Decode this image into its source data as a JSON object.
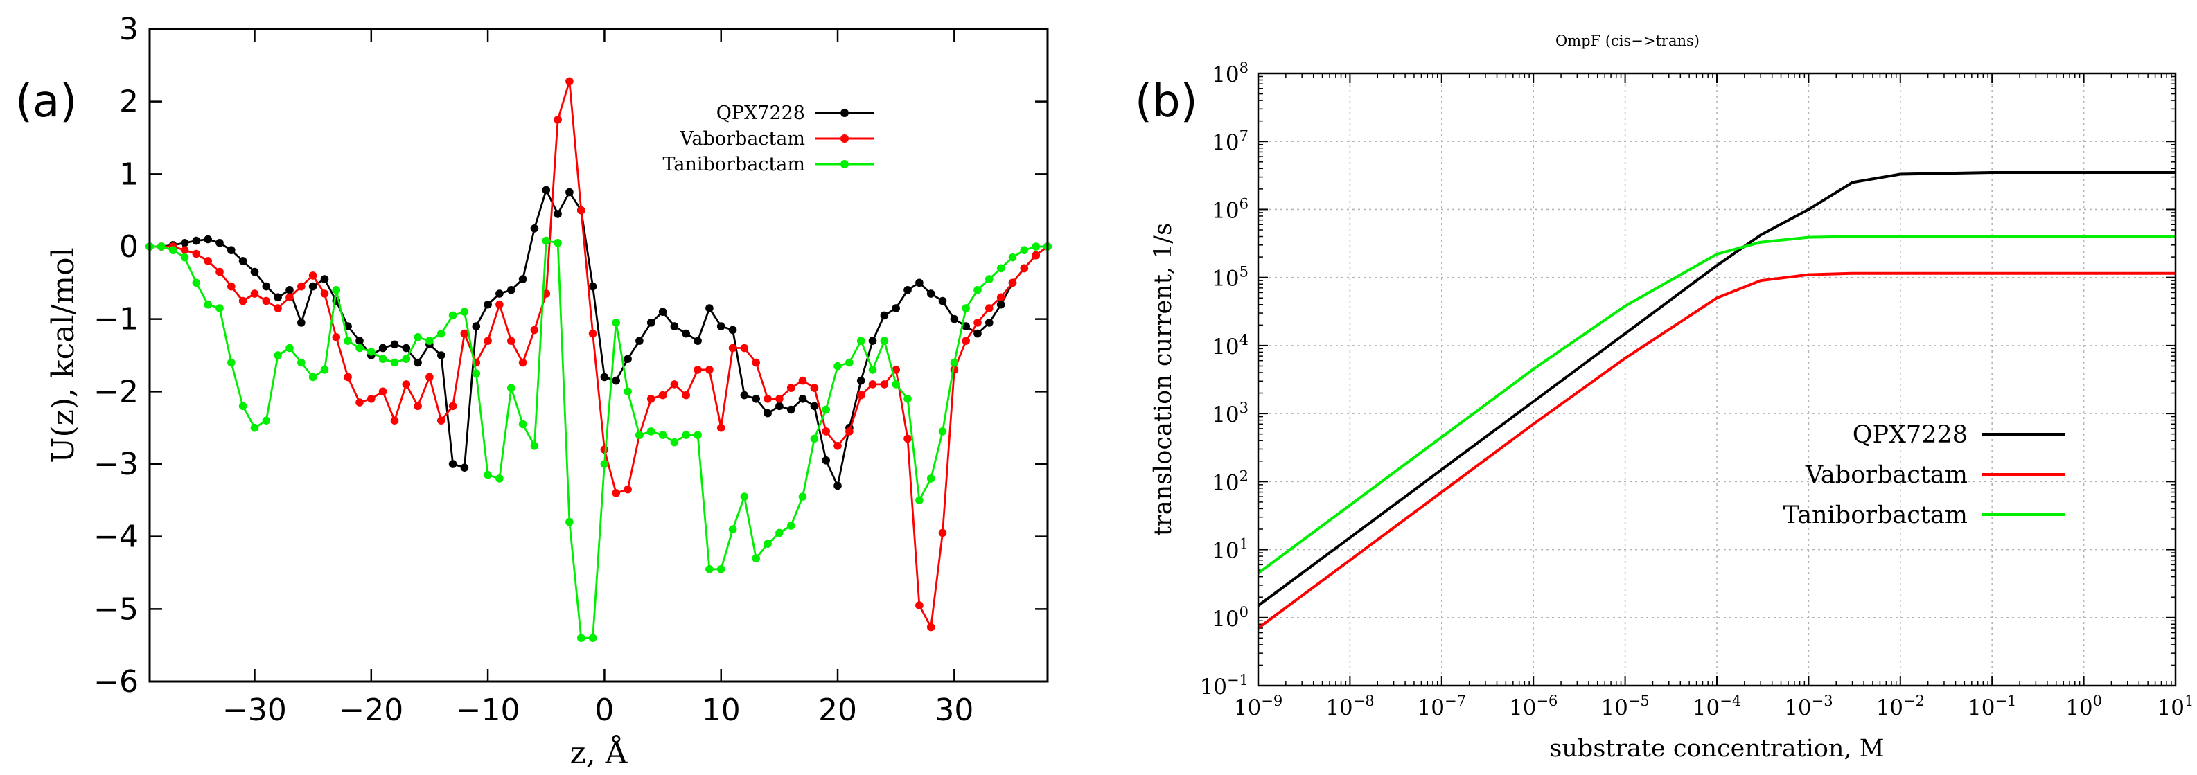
{
  "panels": {
    "a": {
      "label": "(a)"
    },
    "b": {
      "label": "(b)"
    }
  },
  "chart_data": [
    {
      "type": "line",
      "title": "",
      "xlabel": "z, Å",
      "ylabel": "U(z), kcal/mol",
      "xlim": [
        -39,
        38
      ],
      "ylim": [
        -6,
        3
      ],
      "xticks": [
        -30,
        -20,
        -10,
        0,
        10,
        20,
        30
      ],
      "xtick_labels": [
        "−30",
        "−20",
        "−10",
        "0",
        "10",
        "20",
        "30"
      ],
      "yticks": [
        -6,
        -5,
        -4,
        -3,
        -2,
        -1,
        0,
        1,
        2,
        3
      ],
      "ytick_labels": [
        "−6",
        "−5",
        "−4",
        "−3",
        "−2",
        "−1",
        "0",
        "1",
        "2",
        "3"
      ],
      "grid": false,
      "legend": "top-right",
      "markers": true,
      "series": [
        {
          "name": "QPX7228",
          "color": "#000000",
          "x": [
            -39,
            -38,
            -37,
            -36,
            -35,
            -34,
            -33,
            -32,
            -31,
            -30,
            -29,
            -28,
            -27,
            -26,
            -25,
            -24,
            -23,
            -22,
            -21,
            -20,
            -19,
            -18,
            -17,
            -16,
            -15,
            -14,
            -13,
            -12,
            -11,
            -10,
            -9,
            -8,
            -7,
            -6,
            -5,
            -4,
            -3,
            -2,
            -1,
            0,
            1,
            2,
            3,
            4,
            5,
            6,
            7,
            8,
            9,
            10,
            11,
            12,
            13,
            14,
            15,
            16,
            17,
            18,
            19,
            20,
            21,
            22,
            23,
            24,
            25,
            26,
            27,
            28,
            29,
            30,
            31,
            32,
            33,
            34,
            35,
            36,
            37,
            38
          ],
          "y": [
            0,
            0,
            0.02,
            0.05,
            0.08,
            0.1,
            0.05,
            -0.05,
            -0.2,
            -0.35,
            -0.55,
            -0.7,
            -0.6,
            -1.05,
            -0.55,
            -0.45,
            -0.75,
            -1.1,
            -1.3,
            -1.5,
            -1.4,
            -1.35,
            -1.4,
            -1.6,
            -1.35,
            -1.5,
            -3.0,
            -3.05,
            -1.1,
            -0.8,
            -0.65,
            -0.6,
            -0.45,
            0.25,
            0.78,
            0.45,
            0.75,
            0.5,
            -0.55,
            -1.8,
            -1.85,
            -1.55,
            -1.3,
            -1.05,
            -0.9,
            -1.1,
            -1.2,
            -1.3,
            -0.85,
            -1.1,
            -1.15,
            -2.05,
            -2.1,
            -2.3,
            -2.2,
            -2.25,
            -2.1,
            -2.2,
            -2.95,
            -3.3,
            -2.5,
            -1.85,
            -1.3,
            -0.95,
            -0.85,
            -0.6,
            -0.5,
            -0.65,
            -0.75,
            -1.0,
            -1.1,
            -1.2,
            -1.05,
            -0.8,
            -0.5,
            -0.3,
            -0.12,
            0
          ],
          "y_note": ""
        },
        {
          "name": "Vaborbactam",
          "color": "#ff0000",
          "x": [
            -39,
            -38,
            -37,
            -36,
            -35,
            -34,
            -33,
            -32,
            -31,
            -30,
            -29,
            -28,
            -27,
            -26,
            -25,
            -24,
            -23,
            -22,
            -21,
            -20,
            -19,
            -18,
            -17,
            -16,
            -15,
            -14,
            -13,
            -12,
            -11,
            -10,
            -9,
            -8,
            -7,
            -6,
            -5,
            -4,
            -3,
            -2,
            -1,
            0,
            1,
            2,
            3,
            4,
            5,
            6,
            7,
            8,
            9,
            10,
            11,
            12,
            13,
            14,
            15,
            16,
            17,
            18,
            19,
            20,
            21,
            22,
            23,
            24,
            25,
            26,
            27,
            28,
            29,
            30,
            31,
            32,
            33,
            34,
            35,
            36,
            37,
            38
          ],
          "y": [
            0,
            0,
            0,
            -0.05,
            -0.1,
            -0.2,
            -0.35,
            -0.55,
            -0.75,
            -0.65,
            -0.75,
            -0.85,
            -0.7,
            -0.55,
            -0.4,
            -0.65,
            -1.25,
            -1.8,
            -2.15,
            -2.1,
            -2.0,
            -2.4,
            -1.9,
            -2.2,
            -1.8,
            -2.4,
            -2.2,
            -1.2,
            -1.6,
            -1.3,
            -0.8,
            -1.3,
            -1.6,
            -1.15,
            -0.65,
            1.75,
            2.28,
            0.5,
            -1.2,
            -2.8,
            -3.4,
            -3.35,
            -2.6,
            -2.1,
            -2.05,
            -1.9,
            -2.05,
            -1.7,
            -1.7,
            -2.5,
            -1.4,
            -1.4,
            -1.6,
            -2.1,
            -2.1,
            -1.95,
            -1.85,
            -1.95,
            -2.55,
            -2.75,
            -2.55,
            -2.05,
            -1.9,
            -1.9,
            -1.7,
            -2.65,
            -4.95,
            -5.25,
            -3.95,
            -1.7,
            -1.3,
            -1.05,
            -0.85,
            -0.7,
            -0.5,
            -0.3,
            -0.12,
            0
          ],
          "y_note": ""
        },
        {
          "name": "Taniborbactam",
          "color": "#00ee00",
          "x": [
            -39,
            -38,
            -37,
            -36,
            -35,
            -34,
            -33,
            -32,
            -31,
            -30,
            -29,
            -28,
            -27,
            -26,
            -25,
            -24,
            -23,
            -22,
            -21,
            -20,
            -19,
            -18,
            -17,
            -16,
            -15,
            -14,
            -13,
            -12,
            -11,
            -10,
            -9,
            -8,
            -7,
            -6,
            -5,
            -4,
            -3,
            -2,
            -1,
            0,
            1,
            2,
            3,
            4,
            5,
            6,
            7,
            8,
            9,
            10,
            11,
            12,
            13,
            14,
            15,
            16,
            17,
            18,
            19,
            20,
            21,
            22,
            23,
            24,
            25,
            26,
            27,
            28,
            29,
            30,
            31,
            32,
            33,
            34,
            35,
            36,
            37,
            38
          ],
          "y": [
            0,
            0,
            -0.05,
            -0.15,
            -0.5,
            -0.8,
            -0.85,
            -1.6,
            -2.2,
            -2.5,
            -2.4,
            -1.5,
            -1.4,
            -1.6,
            -1.8,
            -1.7,
            -0.6,
            -1.3,
            -1.4,
            -1.45,
            -1.55,
            -1.6,
            -1.55,
            -1.25,
            -1.3,
            -1.2,
            -0.95,
            -0.9,
            -1.75,
            -3.15,
            -3.2,
            -1.95,
            -2.45,
            -2.75,
            0.08,
            0.05,
            -3.8,
            -5.4,
            -5.4,
            -3.0,
            -1.05,
            -2.0,
            -2.6,
            -2.55,
            -2.6,
            -2.7,
            -2.6,
            -2.6,
            -4.45,
            -4.45,
            -3.9,
            -3.45,
            -4.3,
            -4.1,
            -3.95,
            -3.85,
            -3.45,
            -2.65,
            -2.25,
            -1.65,
            -1.6,
            -1.3,
            -1.7,
            -1.3,
            -1.9,
            -2.1,
            -3.5,
            -3.2,
            -2.55,
            -1.6,
            -0.85,
            -0.6,
            -0.45,
            -0.3,
            -0.15,
            -0.05,
            0,
            0
          ],
          "y_note": ""
        }
      ]
    },
    {
      "type": "line",
      "title": "OmpF (cis−>trans)",
      "xlabel": "substrate concentration, M",
      "ylabel": "translocation current, 1/s",
      "xscale": "log",
      "yscale": "log",
      "xlim": [
        1e-09,
        10
      ],
      "ylim": [
        0.1,
        100000000.0
      ],
      "xtick_exponents": [
        -9,
        -8,
        -7,
        -6,
        -5,
        -4,
        -3,
        -2,
        -1,
        0,
        1
      ],
      "ytick_exponents": [
        -1,
        0,
        1,
        2,
        3,
        4,
        5,
        6,
        7,
        8
      ],
      "tick_base": "10",
      "grid": true,
      "legend": "bottom-right",
      "markers": false,
      "series": [
        {
          "name": "QPX7228",
          "color": "#000000",
          "x": [
            1e-09,
            1e-08,
            1e-07,
            1e-06,
            1e-05,
            0.0001,
            0.0003,
            0.001,
            0.003,
            0.01,
            0.1,
            1,
            10
          ],
          "y": [
            1.5,
            15,
            150,
            1500,
            15000,
            150000,
            420000,
            1000000,
            2500000,
            3300000,
            3500000,
            3500000,
            3500000
          ]
        },
        {
          "name": "Vaborbactam",
          "color": "#ff0000",
          "x": [
            1e-09,
            1e-08,
            1e-07,
            1e-06,
            1e-05,
            0.0001,
            0.0003,
            0.001,
            0.003,
            0.01,
            0.1,
            1,
            10
          ],
          "y": [
            0.7,
            7,
            70,
            700,
            6500,
            50000,
            90000,
            110000,
            115000,
            115000,
            115000,
            115000,
            115000
          ]
        },
        {
          "name": "Taniborbactam",
          "color": "#00ee00",
          "x": [
            1e-09,
            1e-08,
            1e-07,
            1e-06,
            1e-05,
            0.0001,
            0.0003,
            0.001,
            0.003,
            0.01,
            0.1,
            1,
            10
          ],
          "y": [
            4.5,
            45,
            450,
            4500,
            38000,
            220000,
            330000,
            390000,
            400000,
            400000,
            400000,
            400000,
            400000
          ]
        }
      ]
    }
  ]
}
